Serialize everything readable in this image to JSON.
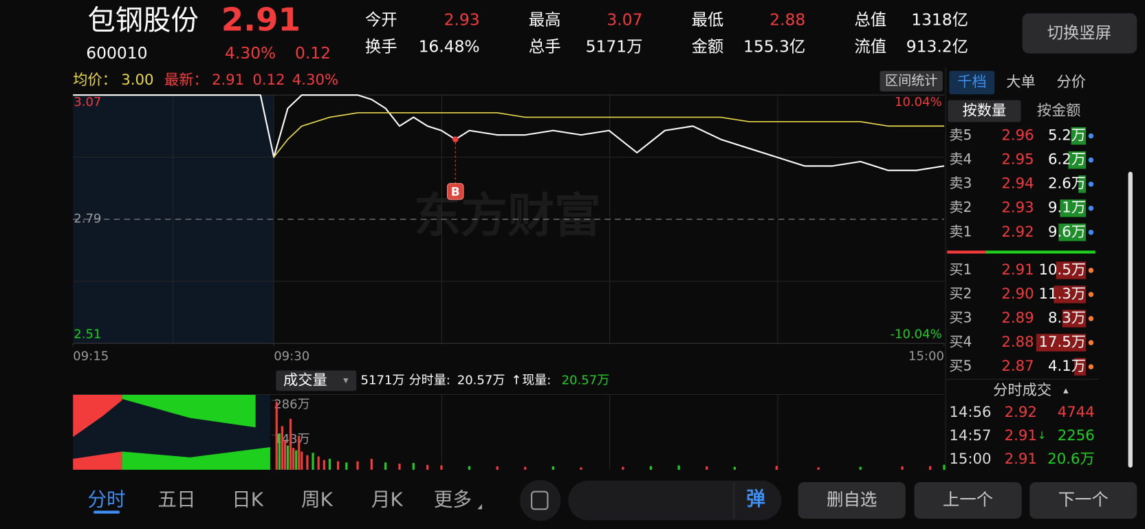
{
  "header": {
    "name": "包钢股份",
    "price": "2.91",
    "code": "600010",
    "change_pct": "4.30%",
    "change": "0.12"
  },
  "stats": [
    {
      "label": "今开",
      "value": "2.93",
      "color": "#f23c3c"
    },
    {
      "label": "最高",
      "value": "3.07",
      "color": "#f23c3c"
    },
    {
      "label": "最低",
      "value": "2.88",
      "color": "#f23c3c"
    },
    {
      "label": "总值",
      "value": "1318亿",
      "color": "#ffffff"
    },
    {
      "label": "换手",
      "value": "16.48%",
      "color": "#ffffff"
    },
    {
      "label": "总手",
      "value": "5171万",
      "color": "#ffffff"
    },
    {
      "label": "金额",
      "value": "155.3亿",
      "color": "#ffffff"
    },
    {
      "label": "流值",
      "value": "913.2亿",
      "color": "#ffffff"
    }
  ],
  "toggle_button": "切换竖屏",
  "legend_row": {
    "avg_label": "均价：",
    "avg": "3.00",
    "last_label": "最新：",
    "last": "2.91",
    "change": "0.12",
    "change_pct": "4.30%"
  },
  "range_stats_button": "区间统计",
  "watermark": "东方财富",
  "chart_data": [
    {
      "type": "line",
      "x": [
        "09:15",
        "09:29",
        "09:30",
        "09:35",
        "09:40",
        "09:50",
        "10:00",
        "10:05",
        "10:10",
        "10:15",
        "10:20",
        "10:25",
        "10:30",
        "10:35",
        "10:40",
        "10:50",
        "11:00",
        "11:10",
        "11:20",
        "11:30",
        "13:10",
        "13:20",
        "13:30",
        "13:40",
        "13:50",
        "14:00",
        "14:10",
        "14:20",
        "14:30",
        "14:40",
        "14:50",
        "15:00"
      ],
      "series": [
        {
          "color": "#ffffff",
          "values": [
            3.07,
            3.07,
            2.93,
            3.04,
            3.07,
            3.07,
            3.07,
            3.06,
            3.04,
            3.0,
            3.02,
            3.0,
            2.99,
            2.97,
            2.99,
            2.98,
            2.98,
            2.99,
            2.98,
            2.99,
            2.94,
            2.99,
            3.0,
            2.97,
            2.95,
            2.93,
            2.91,
            2.91,
            2.92,
            2.9,
            2.9,
            2.91
          ]
        },
        {
          "color": "#e8d84a",
          "values": [
            null,
            null,
            2.93,
            2.97,
            3.0,
            3.02,
            3.03,
            3.03,
            3.03,
            3.03,
            3.03,
            3.03,
            3.03,
            3.03,
            3.03,
            3.03,
            3.02,
            3.02,
            3.02,
            3.02,
            3.02,
            3.02,
            3.02,
            3.02,
            3.01,
            3.01,
            3.01,
            3.01,
            3.01,
            3.0,
            3.0,
            3.0
          ]
        }
      ],
      "ylim": [
        2.51,
        3.07
      ],
      "yticks": [
        2.51,
        2.79,
        3.07
      ],
      "y2lim": [
        -10.04,
        10.04
      ],
      "y2ticks": [
        {
          "value": -10.04,
          "label": "-10.04%"
        },
        {
          "value": 10.04,
          "label": "10.04%"
        }
      ],
      "xticks": [
        "09:15",
        "09:30",
        "15:00"
      ],
      "annotation": {
        "x": "10:35",
        "text": "B"
      }
    },
    {
      "type": "bar",
      "x": [
        "09:31",
        "09:32",
        "09:33",
        "09:34",
        "09:35",
        "09:36",
        "09:37",
        "09:38",
        "09:39",
        "09:40",
        "09:42",
        "09:44",
        "09:46",
        "09:48",
        "09:50",
        "09:53",
        "09:56",
        "10:00",
        "10:05",
        "10:10",
        "10:15",
        "10:20",
        "10:25",
        "10:30",
        "10:40",
        "10:50",
        "11:00",
        "11:10",
        "11:20",
        "13:05",
        "13:15",
        "13:25",
        "13:35",
        "13:45",
        "14:00",
        "14:15",
        "14:30",
        "14:45",
        "14:55",
        "15:00"
      ],
      "values": [
        280,
        150,
        180,
        120,
        100,
        210,
        90,
        80,
        140,
        75,
        60,
        70,
        55,
        40,
        45,
        35,
        30,
        35,
        45,
        30,
        25,
        28,
        20,
        18,
        15,
        14,
        12,
        14,
        10,
        12,
        15,
        18,
        14,
        12,
        16,
        10,
        12,
        14,
        15,
        20.57
      ],
      "colors": [
        "#f23c3c",
        "#1ecf1e",
        "#f23c3c",
        "#f23c3c",
        "#1ecf1e",
        "#f23c3c",
        "#f23c3c",
        "#1ecf1e",
        "#f23c3c",
        "#f23c3c",
        "#f23c3c",
        "#1ecf1e",
        "#f23c3c",
        "#f23c3c",
        "#1ecf1e",
        "#f23c3c",
        "#1ecf1e",
        "#f23c3c",
        "#f23c3c",
        "#1ecf1e",
        "#f23c3c",
        "#1ecf1e",
        "#f23c3c",
        "#f23c3c",
        "#1ecf1e",
        "#f23c3c",
        "#f23c3c",
        "#1ecf1e",
        "#f23c3c",
        "#f23c3c",
        "#1ecf1e",
        "#1ecf1e",
        "#f23c3c",
        "#1ecf1e",
        "#f23c3c",
        "#f23c3c",
        "#1ecf1e",
        "#f23c3c",
        "#f23c3c",
        "#1ecf1e"
      ],
      "ylim": [
        0,
        286
      ],
      "yticks": [
        {
          "value": 143,
          "label": "143万"
        },
        {
          "value": 286,
          "label": "286万"
        }
      ]
    }
  ],
  "volume_header": {
    "selector": "成交量",
    "arrow": "▾",
    "total": "5171万",
    "minute_label": "分时量:",
    "minute": "20.57万",
    "direction": "↑",
    "current_label": "现量:",
    "current": "20.57万"
  },
  "order_book": {
    "tabs": [
      "千档",
      "大单",
      "分价"
    ],
    "sub_tabs": [
      "按数量",
      "按金额"
    ],
    "sell": [
      {
        "label": "卖5",
        "price": "2.96",
        "volume": 5.2,
        "volume_label": "5.2万"
      },
      {
        "label": "卖4",
        "price": "2.95",
        "volume": 6.2,
        "volume_label": "6.2万"
      },
      {
        "label": "卖3",
        "price": "2.94",
        "volume": 2.6,
        "volume_label": "2.6万"
      },
      {
        "label": "卖2",
        "price": "2.93",
        "volume": 9.1,
        "volume_label": "9.1万"
      },
      {
        "label": "卖1",
        "price": "2.92",
        "volume": 9.6,
        "volume_label": "9.6万"
      }
    ],
    "buy": [
      {
        "label": "买1",
        "price": "2.91",
        "volume": 10.5,
        "volume_label": "10.5万"
      },
      {
        "label": "买2",
        "price": "2.90",
        "volume": 11.3,
        "volume_label": "11.3万"
      },
      {
        "label": "买3",
        "price": "2.89",
        "volume": 8.3,
        "volume_label": "8.3万"
      },
      {
        "label": "买4",
        "price": "2.88",
        "volume": 17.5,
        "volume_label": "17.5万"
      },
      {
        "label": "买5",
        "price": "2.87",
        "volume": 4.1,
        "volume_label": "4.1万"
      }
    ]
  },
  "trades": {
    "title": "分时成交",
    "arrow": "▴",
    "rows": [
      {
        "time": "14:56",
        "price": "2.92",
        "flag": "",
        "volume": "4744",
        "color": "#f23c3c"
      },
      {
        "time": "14:57",
        "price": "2.91",
        "flag": "↓",
        "volume": "2256",
        "color": "#1ecf1e"
      },
      {
        "time": "15:00",
        "price": "2.91",
        "flag": "",
        "volume": "20.6万",
        "color": "#1ecf1e"
      }
    ]
  },
  "tabs": [
    "分时",
    "五日",
    "日K",
    "周K",
    "月K",
    "更多"
  ],
  "danmaku": "弹",
  "bottom_buttons": [
    "删自选",
    "上一个",
    "下一个"
  ]
}
